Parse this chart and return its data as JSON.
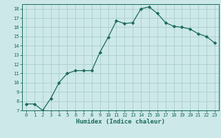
{
  "x": [
    0,
    1,
    2,
    3,
    4,
    5,
    6,
    7,
    8,
    9,
    10,
    11,
    12,
    13,
    14,
    15,
    16,
    17,
    18,
    19,
    20,
    21,
    22,
    23
  ],
  "y": [
    7.7,
    7.7,
    7.0,
    8.3,
    10.0,
    11.0,
    11.3,
    11.3,
    11.3,
    13.3,
    14.9,
    16.7,
    16.4,
    16.5,
    18.0,
    18.2,
    17.5,
    16.5,
    16.1,
    16.0,
    15.8,
    15.3,
    15.0,
    14.3
  ],
  "xlabel": "Humidex (Indice chaleur)",
  "ylim": [
    7,
    18.5
  ],
  "xlim": [
    -0.5,
    23.5
  ],
  "yticks": [
    7,
    8,
    9,
    10,
    11,
    12,
    13,
    14,
    15,
    16,
    17,
    18
  ],
  "xticks": [
    0,
    1,
    2,
    3,
    4,
    5,
    6,
    7,
    8,
    9,
    10,
    11,
    12,
    13,
    14,
    15,
    16,
    17,
    18,
    19,
    20,
    21,
    22,
    23
  ],
  "line_color": "#1a6b5a",
  "bg_color": "#cde8e8",
  "grid_color": "#aacece",
  "marker": "D",
  "marker_size": 2.2,
  "tick_fontsize": 5.0,
  "xlabel_fontsize": 6.5
}
